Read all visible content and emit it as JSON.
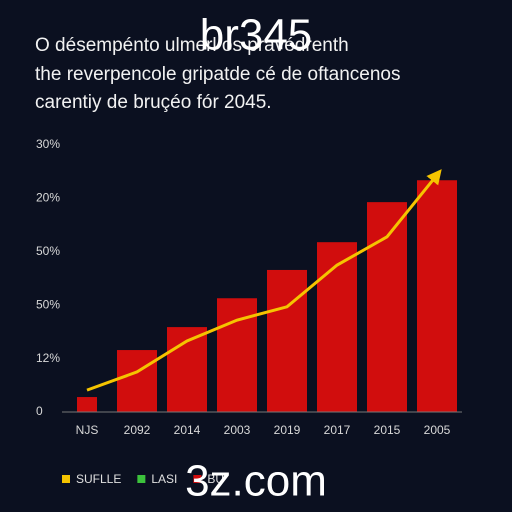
{
  "chart_data": {
    "type": "bar-line",
    "title": [
      "O désempénto ulmerl os pravédrenth",
      "the reverpencole gripatde cé de oftancenos",
      "carentiy de bruçéo fór 2045."
    ],
    "watermark_top": "br345",
    "watermark_bottom": "3z.com",
    "categories": [
      "NJS",
      "2092",
      "2014",
      "2003",
      "2019",
      "2017",
      "2015",
      "2005"
    ],
    "ylim": [
      0,
      5
    ],
    "yticks": [
      {
        "value": 0,
        "label": "0"
      },
      {
        "value": 1,
        "label": "12%"
      },
      {
        "value": 2,
        "label": "50%"
      },
      {
        "value": 3,
        "label": "50%"
      },
      {
        "value": 4,
        "label": "20%"
      },
      {
        "value": 5,
        "label": "30%"
      }
    ],
    "grid": false,
    "series": [
      {
        "name": "SUFLLE",
        "color": "#f5c400",
        "kind": "line",
        "values": [
          0.41,
          0.75,
          1.33,
          1.72,
          1.97,
          2.75,
          3.28,
          4.44
        ]
      },
      {
        "name": "LASI",
        "color": "#3cc23c",
        "kind": "line",
        "values": [
          null,
          null,
          null,
          null,
          null,
          null,
          null,
          null
        ]
      },
      {
        "name": "BU",
        "color": "#d10d0d",
        "kind": "bar",
        "values": [
          0.28,
          1.16,
          1.59,
          2.13,
          2.66,
          3.18,
          3.93,
          4.34
        ]
      }
    ]
  }
}
